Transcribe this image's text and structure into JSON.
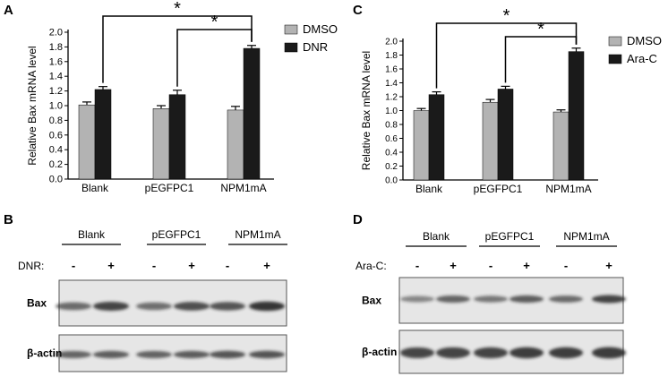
{
  "panel_letters": {
    "a": "A",
    "b": "B",
    "c": "C",
    "d": "D"
  },
  "colors": {
    "dmso": "#b3b3b3",
    "treated": "#1a1a1a",
    "blot_bg": "#e6e6e6",
    "band": "#222222"
  },
  "chart_data": [
    {
      "type": "bar",
      "ylabel": "Relative Bax mRNA level",
      "ylim": [
        0,
        2.0
      ],
      "yticks": [
        "0.0",
        "0.2",
        "0.4",
        "0.6",
        "0.8",
        "1.0",
        "1.2",
        "1.4",
        "1.6",
        "1.8",
        "2.0"
      ],
      "categories": [
        "Blank",
        "pEGFPC1",
        "NPM1mA"
      ],
      "series": [
        {
          "name": "DMSO",
          "values": [
            1.01,
            0.96,
            0.94
          ],
          "errors": [
            0.04,
            0.04,
            0.05
          ]
        },
        {
          "name": "DNR",
          "values": [
            1.22,
            1.15,
            1.78
          ],
          "errors": [
            0.04,
            0.06,
            0.04
          ]
        }
      ],
      "significance": [
        {
          "from": "Blank",
          "to": "NPM1mA",
          "label": "*"
        },
        {
          "from": "pEGFPC1",
          "to": "NPM1mA",
          "label": "*"
        }
      ],
      "legend_position": "top-right"
    },
    {
      "type": "bar",
      "ylabel": "Relative Bax mRNA level",
      "ylim": [
        0,
        2.0
      ],
      "yticks": [
        "0.0",
        "0.2",
        "0.4",
        "0.6",
        "0.8",
        "1.0",
        "1.2",
        "1.4",
        "1.6",
        "1.8",
        "2.0"
      ],
      "categories": [
        "Blank",
        "pEGFPC1",
        "NPM1mA"
      ],
      "series": [
        {
          "name": "DMSO",
          "values": [
            1.0,
            1.12,
            0.98
          ],
          "errors": [
            0.03,
            0.04,
            0.03
          ]
        },
        {
          "name": "Ara-C",
          "values": [
            1.23,
            1.31,
            1.85
          ],
          "errors": [
            0.04,
            0.04,
            0.05
          ]
        }
      ],
      "significance": [
        {
          "from": "Blank",
          "to": "NPM1mA",
          "label": "*"
        },
        {
          "from": "pEGFPC1",
          "to": "NPM1mA",
          "label": "*"
        }
      ],
      "legend_position": "top-right"
    }
  ],
  "blots": [
    {
      "treatment_label": "DNR:",
      "groups": [
        "Blank",
        "pEGFPC1",
        "NPM1mA"
      ],
      "lane_signs": [
        "-",
        "+",
        "-",
        "+",
        "-",
        "+"
      ],
      "rows": [
        {
          "label": "Bax",
          "intensity": [
            0.55,
            0.85,
            0.5,
            0.75,
            0.7,
            0.95
          ]
        },
        {
          "label": "β-actin",
          "intensity": [
            0.6,
            0.65,
            0.62,
            0.66,
            0.7,
            0.72
          ]
        }
      ]
    },
    {
      "treatment_label": "Ara-C:",
      "groups": [
        "Blank",
        "pEGFPC1",
        "NPM1mA"
      ],
      "lane_signs": [
        "-",
        "+",
        "-",
        "+",
        "-",
        "+"
      ],
      "rows": [
        {
          "label": "Bax",
          "intensity": [
            0.35,
            0.6,
            0.45,
            0.65,
            0.55,
            0.85
          ]
        },
        {
          "label": "β-actin",
          "intensity": [
            0.8,
            0.85,
            0.82,
            0.86,
            0.88,
            0.9
          ]
        }
      ]
    }
  ]
}
